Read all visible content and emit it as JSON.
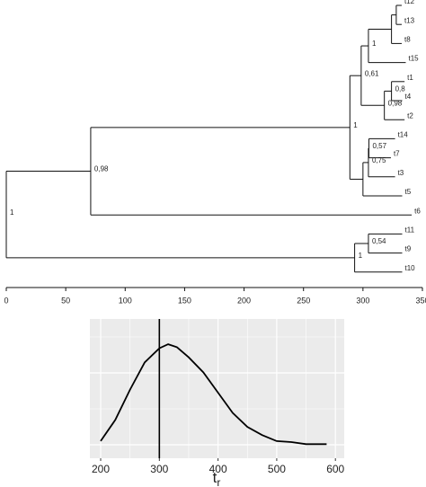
{
  "chart_data": [
    {
      "type": "tree",
      "xlim": [
        0,
        350
      ],
      "xticks": [
        0,
        50,
        100,
        150,
        200,
        250,
        300,
        350
      ],
      "tree": {
        "x": 0,
        "support": "1",
        "children": [
          {
            "x": 71,
            "support": "0,98",
            "children": [
              {
                "x": 289,
                "support": "1",
                "children": [
                  {
                    "x": 298.5,
                    "support": "0,61",
                    "children": [
                      {
                        "x": 304.6,
                        "support": "1",
                        "children": [
                          {
                            "x": 324,
                            "children": [
                              {
                                "x": 328,
                                "children": [
                                  {
                                    "x": 332.6,
                                    "label": "t12"
                                  },
                                  {
                                    "x": 332.6,
                                    "label": "t13"
                                  }
                                ]
                              },
                              {
                                "x": 332.6,
                                "label": "t8"
                              }
                            ]
                          },
                          {
                            "x": 336,
                            "label": "t15"
                          }
                        ]
                      },
                      {
                        "x": 318,
                        "support": "0,98",
                        "children": [
                          {
                            "x": 324,
                            "support": "0,8",
                            "children": [
                              {
                                "x": 335,
                                "label": "t1"
                              },
                              {
                                "x": 333,
                                "label": "t4"
                              }
                            ]
                          },
                          {
                            "x": 335,
                            "label": "t2"
                          }
                        ]
                      }
                    ]
                  },
                  {
                    "x": 300,
                    "children": [
                      {
                        "x": 304.6,
                        "support": "0,75",
                        "children": [
                          {
                            "x": 305,
                            "support": "0,57",
                            "children": [
                              {
                                "x": 327,
                                "label": "t14"
                              },
                              {
                                "x": 323.5,
                                "label": "t7"
                              }
                            ]
                          },
                          {
                            "x": 327,
                            "label": "t3"
                          }
                        ]
                      },
                      {
                        "x": 333,
                        "label": "t5"
                      }
                    ]
                  }
                ]
              },
              {
                "x": 341,
                "label": "t6"
              }
            ]
          },
          {
            "x": 293,
            "support": "1",
            "children": [
              {
                "x": 304.6,
                "support": "0,54",
                "children": [
                  {
                    "x": 333,
                    "label": "t11"
                  },
                  {
                    "x": 333,
                    "label": "t9"
                  }
                ]
              },
              {
                "x": 333,
                "label": "t10"
              }
            ]
          }
        ]
      }
    },
    {
      "type": "line",
      "x": [
        200,
        225,
        250,
        275,
        300,
        315,
        330,
        350,
        375,
        400,
        425,
        450,
        475,
        500,
        525,
        550,
        585
      ],
      "values": [
        0.04,
        0.25,
        0.55,
        0.82,
        0.96,
        1.0,
        0.97,
        0.87,
        0.72,
        0.52,
        0.32,
        0.18,
        0.1,
        0.04,
        0.03,
        0.01,
        0.01
      ],
      "color": "#000000",
      "xlim": [
        181.6,
        615
      ],
      "xticks": [
        200,
        300,
        400,
        500,
        600
      ],
      "ylim": [
        -0.13,
        1.25
      ],
      "vline": 300,
      "xlabel": "t",
      "xlabel_subscript": "r",
      "grid": true
    }
  ]
}
